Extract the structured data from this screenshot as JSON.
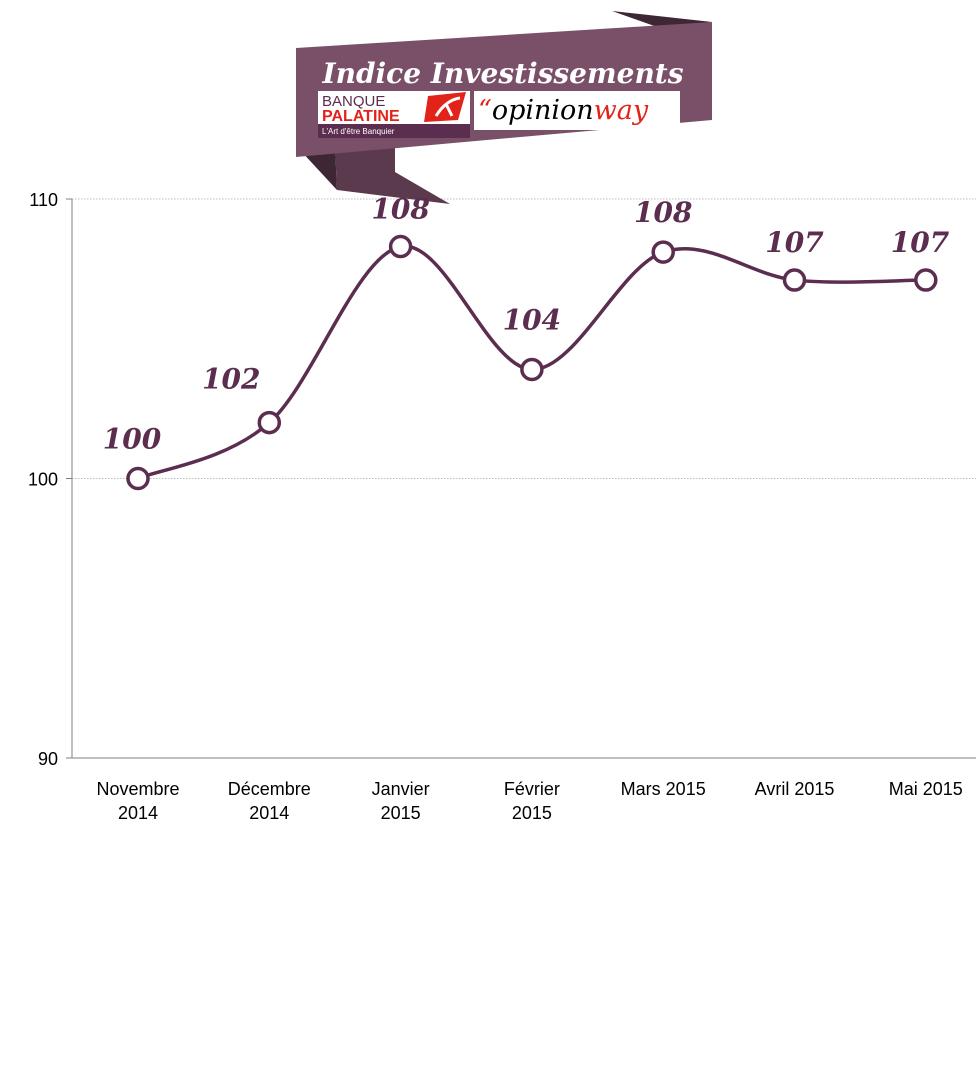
{
  "colors": {
    "line": "#5b2d4e",
    "marker_fill": "#ffffff",
    "ribbon_main": "#7a5068",
    "ribbon_dark": "#5a3a4c",
    "ribbon_fold": "#3e2635",
    "logo_red": "#e2231a",
    "grid": "#bdbdbd"
  },
  "banner": {
    "title": "Indice Investissements",
    "logo_bank_top": "BANQUE",
    "logo_bank_main": "PALATINE",
    "logo_bank_tagline": "L'Art d'être Banquier",
    "logo_ow_quote": "“",
    "logo_ow_part1": "opinion",
    "logo_ow_part2": "way"
  },
  "chart_data": {
    "type": "line",
    "categories": [
      [
        "Novembre",
        "2014"
      ],
      [
        "Décembre",
        "2014"
      ],
      [
        "Janvier",
        "2015"
      ],
      [
        "Février",
        "2015"
      ],
      [
        "Mars 2015"
      ],
      [
        "Avril 2015"
      ],
      [
        "Mai 2015"
      ]
    ],
    "values": [
      100,
      102,
      108.3,
      103.9,
      108.1,
      107.1,
      107.1
    ],
    "data_labels": [
      "100",
      "102",
      "108",
      "104",
      "108",
      "107",
      "107"
    ],
    "ylim": [
      90,
      110
    ],
    "yticks": [
      "90",
      "100",
      "110"
    ],
    "grid": true,
    "smooth": true,
    "title": "",
    "xlabel": "",
    "ylabel": ""
  }
}
